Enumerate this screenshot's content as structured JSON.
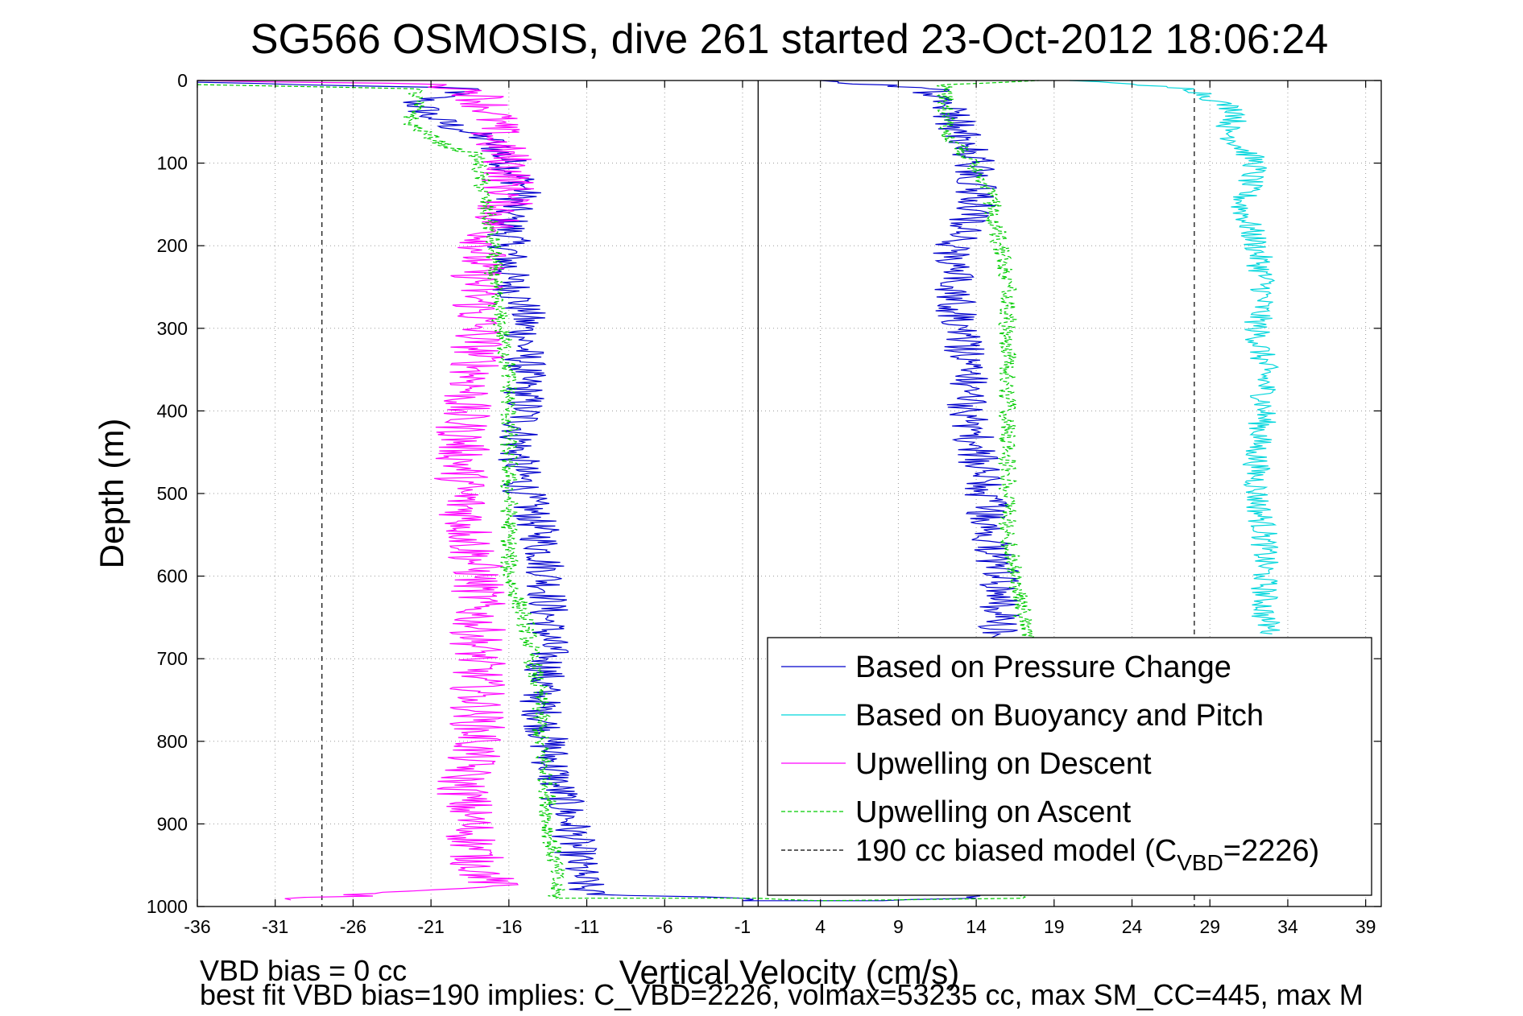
{
  "chart_data": {
    "type": "line",
    "title": "SG566 OSMOSIS, dive 261 started 23-Oct-2012 18:06:24",
    "xlabel": "Vertical Velocity (cm/s)",
    "ylabel": "Depth (m)",
    "xlim": [
      -36,
      40
    ],
    "ylim": [
      1000,
      0
    ],
    "y_reversed": true,
    "grid": true,
    "legend_placement": "bottom-right",
    "xticks": [
      -36,
      -31,
      -26,
      -21,
      -16,
      -11,
      -6,
      -1,
      4,
      9,
      14,
      19,
      24,
      29,
      34,
      39
    ],
    "yticks": [
      0,
      100,
      200,
      300,
      400,
      500,
      600,
      700,
      800,
      900,
      1000
    ],
    "reference_lines": [
      {
        "style": "solid",
        "color": "#000000",
        "x": 0.0
      },
      {
        "style": "dashed",
        "color": "#000000",
        "x": -28.0
      },
      {
        "style": "dashed",
        "color": "#000000",
        "x": 28.0
      }
    ],
    "series": [
      {
        "name": "Based on Pressure Change",
        "color": "#0000cc",
        "dash": "solid",
        "noise": 1.4,
        "points": [
          [
            -36,
            2
          ],
          [
            -18,
            10
          ],
          [
            -22,
            25
          ],
          [
            -21,
            45
          ],
          [
            -19,
            60
          ],
          [
            -17,
            75
          ],
          [
            -16,
            100
          ],
          [
            -15,
            130
          ],
          [
            -16,
            160
          ],
          [
            -16,
            200
          ],
          [
            -16,
            240
          ],
          [
            -15,
            280
          ],
          [
            -15,
            320
          ],
          [
            -15,
            360
          ],
          [
            -15,
            400
          ],
          [
            -15.5,
            450
          ],
          [
            -15,
            500
          ],
          [
            -14,
            550
          ],
          [
            -13.5,
            600
          ],
          [
            -13.5,
            650
          ],
          [
            -13.5,
            700
          ],
          [
            -14,
            750
          ],
          [
            -13.5,
            800
          ],
          [
            -13,
            850
          ],
          [
            -12,
            900
          ],
          [
            -11.5,
            960
          ],
          [
            -11,
            985
          ],
          [
            -1,
            990
          ],
          [
            -1,
            993
          ],
          [
            8,
            993
          ],
          [
            14,
            990
          ],
          [
            14,
            980
          ],
          [
            14.2,
            950
          ],
          [
            12,
            930
          ],
          [
            9,
            920
          ],
          [
            8,
            900
          ],
          [
            13.5,
            980
          ],
          [
            15.5,
            670
          ],
          [
            15.5,
            600
          ],
          [
            15,
            550
          ],
          [
            14.5,
            500
          ],
          [
            14,
            450
          ],
          [
            13.5,
            400
          ],
          [
            13.5,
            340
          ],
          [
            13,
            300
          ],
          [
            12.5,
            250
          ],
          [
            12.5,
            200
          ],
          [
            14,
            150
          ],
          [
            14,
            100
          ],
          [
            13,
            60
          ],
          [
            12,
            30
          ],
          [
            11,
            10
          ],
          [
            4,
            0
          ]
        ]
      },
      {
        "name": "Based on Buoyancy and Pitch",
        "color": "#00d6dc",
        "dash": "solid",
        "noise": 0.9,
        "points": [
          [
            20,
            0
          ],
          [
            28,
            10
          ],
          [
            29.5,
            25
          ],
          [
            31,
            40
          ],
          [
            30,
            60
          ],
          [
            32,
            100
          ],
          [
            31,
            150
          ],
          [
            32,
            200
          ],
          [
            32.5,
            250
          ],
          [
            32,
            300
          ],
          [
            32.5,
            350
          ],
          [
            32.5,
            400
          ],
          [
            32,
            450
          ],
          [
            32,
            500
          ],
          [
            32.5,
            550
          ],
          [
            32.5,
            600
          ],
          [
            32.5,
            650
          ],
          [
            33,
            670
          ]
        ]
      },
      {
        "name": "Upwelling on Descent",
        "color": "#ff00ff",
        "dash": "solid",
        "noise": 1.8,
        "points": [
          [
            -36,
            0
          ],
          [
            -20,
            5
          ],
          [
            -18,
            15
          ],
          [
            -17,
            40
          ],
          [
            -17,
            70
          ],
          [
            -16,
            100
          ],
          [
            -16,
            140
          ],
          [
            -17,
            180
          ],
          [
            -18,
            220
          ],
          [
            -18,
            260
          ],
          [
            -18,
            300
          ],
          [
            -18,
            350
          ],
          [
            -19,
            400
          ],
          [
            -19,
            450
          ],
          [
            -19,
            500
          ],
          [
            -18.5,
            550
          ],
          [
            -18,
            600
          ],
          [
            -18,
            650
          ],
          [
            -18,
            700
          ],
          [
            -18,
            750
          ],
          [
            -18,
            800
          ],
          [
            -19,
            850
          ],
          [
            -18.5,
            900
          ],
          [
            -18,
            950
          ],
          [
            -17,
            975
          ],
          [
            -30,
            992
          ]
        ]
      },
      {
        "name": "Upwelling on Ascent",
        "color": "#00cc00",
        "dash": "dashed",
        "noise": 0.6,
        "points": [
          [
            -36,
            5
          ],
          [
            -22,
            10
          ],
          [
            -22,
            40
          ],
          [
            -22.5,
            50
          ],
          [
            -20,
            80
          ],
          [
            -18,
            90
          ],
          [
            -18,
            100
          ],
          [
            -17.5,
            150
          ],
          [
            -17,
            200
          ],
          [
            -17,
            250
          ],
          [
            -16.5,
            300
          ],
          [
            -16,
            350
          ],
          [
            -16,
            400
          ],
          [
            -16,
            450
          ],
          [
            -16,
            500
          ],
          [
            -16,
            550
          ],
          [
            -16,
            600
          ],
          [
            -15,
            650
          ],
          [
            -14.5,
            700
          ],
          [
            -14,
            750
          ],
          [
            -14,
            800
          ],
          [
            -13.5,
            850
          ],
          [
            -13.5,
            900
          ],
          [
            -13,
            950
          ],
          [
            -13,
            990
          ],
          [
            0,
            990
          ],
          [
            4,
            993
          ],
          [
            17,
            990
          ],
          [
            16,
            970
          ],
          [
            16,
            950
          ],
          [
            16.5,
            900
          ],
          [
            17,
            850
          ],
          [
            17,
            800
          ],
          [
            17.5,
            700
          ],
          [
            17,
            650
          ],
          [
            16.5,
            600
          ],
          [
            16,
            550
          ],
          [
            16,
            500
          ],
          [
            16,
            450
          ],
          [
            16,
            400
          ],
          [
            16,
            350
          ],
          [
            16,
            300
          ],
          [
            16,
            250
          ],
          [
            15.5,
            200
          ],
          [
            15,
            150
          ],
          [
            14.5,
            120
          ],
          [
            12,
            60
          ],
          [
            12,
            30
          ],
          [
            12,
            5
          ],
          [
            18,
            0
          ]
        ]
      },
      {
        "name": "190 cc biased model (C_VBD=2226)",
        "color": "#000000",
        "dash": "dashed",
        "legend_only": true
      }
    ],
    "legend": [
      {
        "label": "Based on Pressure Change",
        "sub": "",
        "tail": ""
      },
      {
        "label": "Based on Buoyancy and Pitch",
        "sub": "",
        "tail": ""
      },
      {
        "label": "Upwelling on Descent",
        "sub": "",
        "tail": ""
      },
      {
        "label": "Upwelling on Ascent",
        "sub": "",
        "tail": ""
      },
      {
        "label": "190 cc biased model (C",
        "sub": "VBD",
        "tail": "=2226)"
      }
    ]
  },
  "footer": {
    "line1": "VBD bias = 0 cc",
    "line2": "best fit VBD bias=190 implies: C_VBD=2226, volmax=53235 cc, max SM_CC=445, max M"
  }
}
